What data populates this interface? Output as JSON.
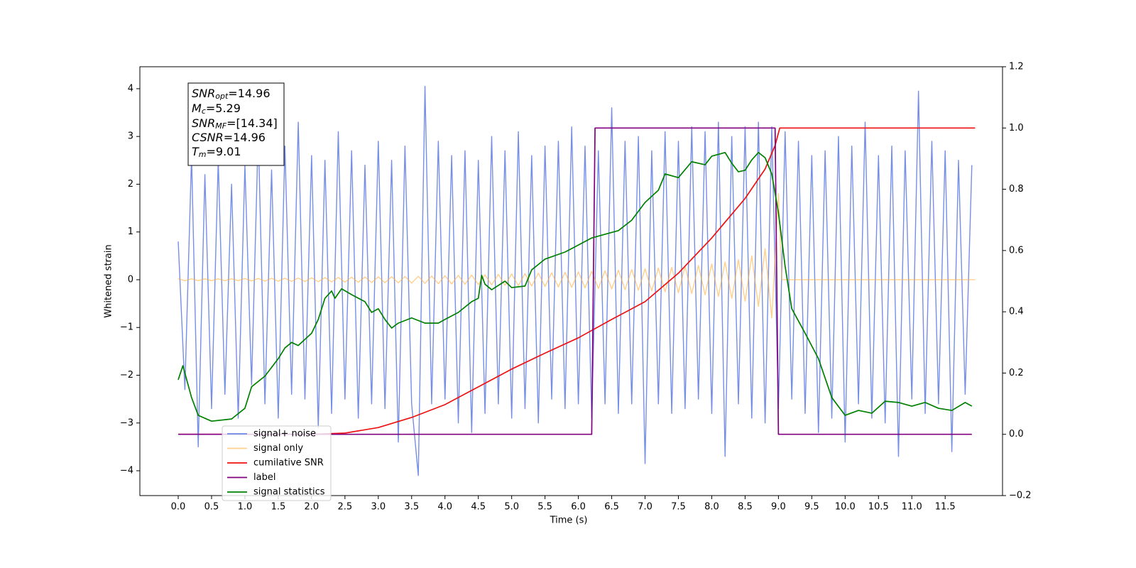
{
  "chart_data": {
    "type": "line",
    "xlabel": "Time (s)",
    "ylabel": "Whitened strain",
    "xlim": [
      -0.575,
      12.36
    ],
    "ylim": [
      -4.52,
      4.46
    ],
    "y2lim": [
      -0.2,
      1.2
    ],
    "xticks": [
      {
        "value": 0,
        "label": "0.0"
      },
      0.5,
      {
        "value": 1,
        "label": "1.0"
      },
      1.5,
      {
        "value": 2,
        "label": "2.0"
      },
      2.5,
      {
        "value": 3,
        "label": "3.0"
      },
      3.5,
      {
        "value": 4,
        "label": "4.0"
      },
      4.5,
      {
        "value": 5,
        "label": "5.0"
      },
      5.5,
      {
        "value": 6,
        "label": "6.0"
      },
      6.5,
      {
        "value": 7,
        "label": "7.0"
      },
      7.5,
      {
        "value": 8,
        "label": "8.0"
      },
      8.5,
      {
        "value": 9,
        "label": "9.0"
      },
      9.5,
      {
        "value": 10,
        "label": "10.0"
      },
      10.5,
      {
        "value": 11,
        "label": "11.0"
      },
      11.5
    ],
    "yticks": [
      {
        "value": -4,
        "label": "−4"
      },
      {
        "value": -3,
        "label": "−3"
      },
      {
        "value": -2,
        "label": "−2"
      },
      {
        "value": -1,
        "label": "−1"
      },
      0,
      1,
      2,
      3,
      4
    ],
    "y2ticks": [
      {
        "value": -0.2,
        "label": "−0.2"
      },
      {
        "value": 0,
        "label": "0.0"
      },
      0.2,
      0.4,
      0.6,
      0.8,
      {
        "value": 1,
        "label": "1.0"
      },
      1.2
    ],
    "legend_loc": "lower left",
    "annotation": [
      {
        "symbol": "SNR",
        "sub": "opt",
        "text": "=14.96"
      },
      {
        "symbol": "M",
        "sub": "c",
        "text": "=5.29"
      },
      {
        "symbol": "SNR",
        "sub": "MF",
        "text": "=[14.34]"
      },
      {
        "symbol": "CSNR",
        "text": "=14.96"
      },
      {
        "symbol": "T",
        "sub": "m",
        "text": "=9.01"
      }
    ],
    "series": [
      {
        "name": "signal+ noise",
        "color": "#6f88e4",
        "axis": "y",
        "x": [
          0,
          0.1,
          0.2,
          0.3,
          0.4,
          0.5,
          0.6,
          0.7,
          0.8,
          0.9,
          1.0,
          1.1,
          1.2,
          1.3,
          1.4,
          1.5,
          1.6,
          1.7,
          1.8,
          1.9,
          2.0,
          2.1,
          2.2,
          2.3,
          2.4,
          2.5,
          2.6,
          2.7,
          2.8,
          2.9,
          3.0,
          3.1,
          3.2,
          3.3,
          3.4,
          3.5,
          3.6,
          3.7,
          3.8,
          3.9,
          4.0,
          4.1,
          4.2,
          4.3,
          4.4,
          4.5,
          4.6,
          4.7,
          4.8,
          4.9,
          5.0,
          5.1,
          5.2,
          5.3,
          5.4,
          5.5,
          5.6,
          5.7,
          5.8,
          5.9,
          6.0,
          6.1,
          6.2,
          6.3,
          6.4,
          6.5,
          6.6,
          6.7,
          6.8,
          6.9,
          7.0,
          7.1,
          7.2,
          7.3,
          7.4,
          7.5,
          7.6,
          7.7,
          7.8,
          7.9,
          8.0,
          8.1,
          8.2,
          8.3,
          8.4,
          8.5,
          8.6,
          8.7,
          8.8,
          8.9,
          9.0,
          9.1,
          9.2,
          9.3,
          9.4,
          9.5,
          9.6,
          9.7,
          9.8,
          9.9,
          10.0,
          10.1,
          10.2,
          10.3,
          10.4,
          10.5,
          10.6,
          10.7,
          10.8,
          10.9,
          11.0,
          11.1,
          11.2,
          11.3,
          11.4,
          11.5,
          11.6,
          11.7,
          11.8,
          11.9
        ],
        "values": [
          0.8,
          -2.3,
          2.6,
          -3.5,
          2.2,
          -2.7,
          2.5,
          -2.4,
          2.0,
          -2.9,
          2.4,
          -2.2,
          3.1,
          -2.6,
          2.3,
          -2.9,
          2.8,
          -2.4,
          3.3,
          -2.5,
          2.6,
          -3.1,
          2.5,
          -2.8,
          3.1,
          -2.5,
          2.7,
          -2.9,
          2.4,
          -2.6,
          2.9,
          -2.7,
          2.5,
          -3.4,
          2.8,
          -2.6,
          -4.1,
          4.05,
          -2.6,
          2.9,
          -2.5,
          2.6,
          -3.0,
          2.7,
          -3.2,
          2.5,
          -2.8,
          3.0,
          -2.6,
          2.7,
          -2.9,
          3.1,
          -2.7,
          2.6,
          -3.0,
          2.8,
          -2.5,
          2.9,
          -2.7,
          3.2,
          -2.6,
          2.8,
          -2.9,
          2.7,
          -2.6,
          3.6,
          -2.8,
          2.9,
          -2.6,
          3.0,
          -3.85,
          2.7,
          -2.6,
          3.1,
          -2.8,
          2.9,
          -2.7,
          3.2,
          -2.5,
          3.1,
          -2.8,
          3.3,
          -3.7,
          3.0,
          -2.6,
          3.2,
          -2.9,
          3.3,
          -3.0,
          3.2,
          -2.7,
          3.1,
          -2.5,
          2.9,
          -2.8,
          2.6,
          -3.2,
          2.7,
          -2.9,
          3.0,
          -3.4,
          2.8,
          -2.6,
          3.3,
          -2.9,
          2.6,
          -3.0,
          2.8,
          -3.7,
          2.7,
          -2.5,
          3.95,
          -2.8,
          2.9,
          -2.6,
          2.7,
          -3.6,
          2.5,
          -2.4,
          2.4
        ]
      },
      {
        "name": "signal only",
        "color": "#ffb040",
        "axis": "y",
        "x": [
          0,
          0.1,
          0.2,
          0.3,
          0.4,
          0.5,
          0.6,
          0.7,
          0.8,
          0.9,
          1.0,
          1.1,
          1.2,
          1.3,
          1.4,
          1.5,
          1.6,
          1.7,
          1.8,
          1.9,
          2.0,
          2.1,
          2.2,
          2.3,
          2.4,
          2.5,
          2.6,
          2.7,
          2.8,
          2.9,
          3.0,
          3.1,
          3.2,
          3.3,
          3.4,
          3.5,
          3.6,
          3.7,
          3.8,
          3.9,
          4.0,
          4.1,
          4.2,
          4.3,
          4.4,
          4.5,
          4.6,
          4.7,
          4.8,
          4.9,
          5.0,
          5.1,
          5.2,
          5.3,
          5.4,
          5.5,
          5.6,
          5.7,
          5.8,
          5.9,
          6.0,
          6.1,
          6.2,
          6.3,
          6.4,
          6.5,
          6.6,
          6.7,
          6.8,
          6.9,
          7.0,
          7.1,
          7.2,
          7.3,
          7.4,
          7.5,
          7.6,
          7.7,
          7.8,
          7.9,
          8.0,
          8.1,
          8.2,
          8.3,
          8.4,
          8.5,
          8.6,
          8.7,
          8.8,
          8.9,
          9.0,
          9.05,
          11.95
        ],
        "values": [
          0.02,
          -0.02,
          0.02,
          -0.02,
          0.02,
          -0.02,
          0.02,
          -0.02,
          0.02,
          -0.02,
          0.025,
          -0.025,
          0.027,
          -0.028,
          0.03,
          -0.03,
          0.032,
          -0.034,
          0.036,
          -0.038,
          0.04,
          -0.042,
          0.044,
          -0.046,
          0.048,
          -0.05,
          0.052,
          -0.054,
          0.056,
          -0.058,
          0.06,
          -0.062,
          0.064,
          -0.066,
          0.068,
          -0.07,
          0.073,
          -0.076,
          0.079,
          -0.082,
          0.085,
          -0.088,
          0.091,
          -0.094,
          0.097,
          -0.1,
          0.104,
          -0.108,
          0.112,
          -0.116,
          0.12,
          -0.124,
          0.128,
          -0.132,
          0.136,
          -0.14,
          0.145,
          -0.15,
          0.155,
          -0.16,
          0.165,
          -0.17,
          0.176,
          -0.182,
          0.188,
          -0.194,
          0.2,
          -0.207,
          0.214,
          -0.221,
          0.228,
          -0.236,
          0.244,
          -0.252,
          0.26,
          -0.27,
          0.28,
          -0.29,
          0.3,
          -0.315,
          0.33,
          -0.35,
          0.37,
          -0.39,
          0.42,
          -0.45,
          0.5,
          -0.56,
          0.65,
          -0.8,
          1.8,
          0,
          0
        ]
      },
      {
        "name": "cumilative SNR",
        "color": "#ee1111",
        "axis": "y2",
        "x": [
          0,
          2.0,
          2.5,
          3.0,
          3.5,
          4.0,
          4.5,
          5.0,
          5.5,
          6.0,
          6.5,
          7.0,
          7.5,
          8.0,
          8.5,
          8.8,
          8.95,
          9.02,
          11.95
        ],
        "values": [
          0,
          0,
          0.004,
          0.022,
          0.055,
          0.097,
          0.155,
          0.213,
          0.265,
          0.315,
          0.375,
          0.433,
          0.526,
          0.641,
          0.77,
          0.866,
          0.943,
          1.0,
          1.0
        ]
      },
      {
        "name": "label",
        "color": "#800080",
        "axis": "y2",
        "x": [
          0,
          6.2,
          6.25,
          8.95,
          9.0,
          11.9
        ],
        "values": [
          0,
          0,
          1,
          1,
          0,
          0
        ]
      },
      {
        "name": "signal statistics",
        "color": "#008000",
        "axis": "y2",
        "x": [
          0,
          0.07,
          0.2,
          0.3,
          0.5,
          0.8,
          1.0,
          1.1,
          1.3,
          1.5,
          1.6,
          1.7,
          1.8,
          2.0,
          2.1,
          2.2,
          2.3,
          2.35,
          2.45,
          2.6,
          2.8,
          2.9,
          3.0,
          3.1,
          3.2,
          3.3,
          3.5,
          3.7,
          3.9,
          4.0,
          4.2,
          4.4,
          4.5,
          4.55,
          4.6,
          4.7,
          4.9,
          5.0,
          5.2,
          5.3,
          5.5,
          5.8,
          6.0,
          6.2,
          6.4,
          6.6,
          6.8,
          7.0,
          7.2,
          7.3,
          7.5,
          7.7,
          7.9,
          8.0,
          8.2,
          8.3,
          8.4,
          8.5,
          8.6,
          8.7,
          8.8,
          8.9,
          9.0,
          9.1,
          9.2,
          9.4,
          9.6,
          9.8,
          10.0,
          10.2,
          10.4,
          10.6,
          10.8,
          11.0,
          11.2,
          11.4,
          11.6,
          11.8,
          11.9
        ],
        "values": [
          0.178,
          0.224,
          0.12,
          0.062,
          0.043,
          0.05,
          0.085,
          0.155,
          0.19,
          0.247,
          0.282,
          0.3,
          0.29,
          0.33,
          0.375,
          0.444,
          0.468,
          0.444,
          0.475,
          0.456,
          0.433,
          0.398,
          0.41,
          0.375,
          0.347,
          0.363,
          0.38,
          0.363,
          0.363,
          0.375,
          0.398,
          0.433,
          0.444,
          0.519,
          0.49,
          0.472,
          0.5,
          0.479,
          0.484,
          0.537,
          0.572,
          0.595,
          0.618,
          0.641,
          0.653,
          0.665,
          0.699,
          0.757,
          0.797,
          0.85,
          0.838,
          0.89,
          0.88,
          0.908,
          0.92,
          0.885,
          0.857,
          0.862,
          0.896,
          0.92,
          0.903,
          0.85,
          0.723,
          0.549,
          0.41,
          0.33,
          0.247,
          0.12,
          0.062,
          0.078,
          0.069,
          0.108,
          0.104,
          0.092,
          0.104,
          0.085,
          0.078,
          0.104,
          0.092
        ]
      }
    ]
  }
}
